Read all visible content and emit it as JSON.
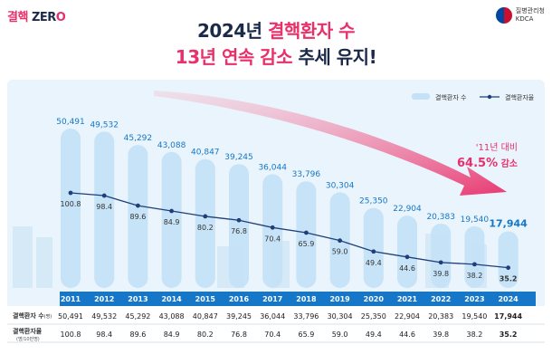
{
  "brand": {
    "logo_korean": "결핵",
    "logo_latin": "ZER",
    "logo_mark": "O"
  },
  "agency": {
    "name": "질병관리청",
    "abbr": "KDCA"
  },
  "headline": {
    "line1_a": "2024년 ",
    "line1_b": "결핵환자 수",
    "line2_a": "13년 연속 감소",
    "line2_b": " 추세 유지!"
  },
  "annotation": {
    "line1": "'11년 대비",
    "pct": "64.5%",
    "suffix": " 감소"
  },
  "table": {
    "row1_label": "결핵환자 수",
    "row1_unit": "(명)",
    "row2_label": "결핵환자율",
    "row2_unit": "(명/10만명)"
  },
  "colors": {
    "bar": "#c5e1f7",
    "bar_top": "#dcedfb",
    "line": "#1f3f7a",
    "year_band": "#1677c8",
    "accent": "#e8306b"
  },
  "chart_data": {
    "type": "bar",
    "categories": [
      "2011",
      "2012",
      "2013",
      "2014",
      "2015",
      "2016",
      "2017",
      "2018",
      "2019",
      "2020",
      "2021",
      "2022",
      "2023",
      "2024"
    ],
    "series": [
      {
        "name": "결핵환자 수",
        "type": "bar",
        "values": [
          50491,
          49532,
          45292,
          43088,
          40847,
          39245,
          36044,
          33796,
          30304,
          25350,
          22904,
          20383,
          19540,
          17944
        ]
      },
      {
        "name": "결핵환자율",
        "type": "line",
        "values": [
          100.8,
          98.4,
          89.6,
          84.9,
          80.2,
          76.8,
          70.4,
          65.9,
          59.0,
          49.4,
          44.6,
          39.8,
          38.2,
          35.2
        ]
      }
    ],
    "labels_count": [
      "50,491",
      "49,532",
      "45,292",
      "43,088",
      "40,847",
      "39,245",
      "36,044",
      "33,796",
      "30,304",
      "25,350",
      "22,904",
      "20,383",
      "19,540",
      "17,944"
    ],
    "labels_rate": [
      "100.8",
      "98.4",
      "89.6",
      "84.9",
      "80.2",
      "76.8",
      "70.4",
      "65.9",
      "59.0",
      "49.4",
      "44.6",
      "39.8",
      "38.2",
      "35.2"
    ],
    "legend_position": "top-right"
  }
}
